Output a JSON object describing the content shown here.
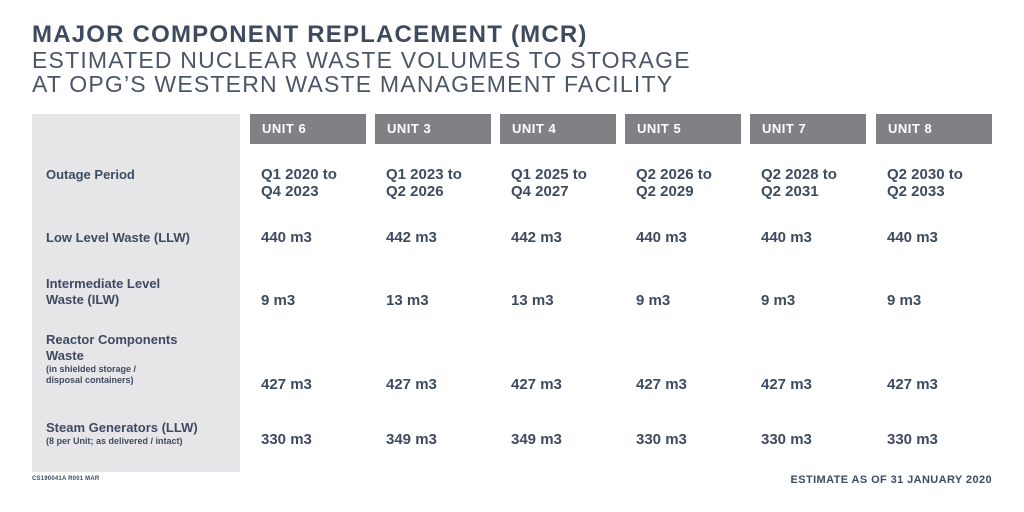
{
  "title": {
    "line1": "MAJOR COMPONENT REPLACEMENT (MCR)",
    "line2": "ESTIMATED NUCLEAR WASTE VOLUMES TO STORAGE",
    "line3": "AT OPG’S WESTERN WASTE MANAGEMENT FACILITY"
  },
  "units": [
    "UNIT 6",
    "UNIT 3",
    "UNIT 4",
    "UNIT 5",
    "UNIT 7",
    "UNIT 8"
  ],
  "rows": [
    {
      "label": "Outage Period",
      "note": "",
      "values": [
        [
          "Q1 2020 to",
          "Q4 2023"
        ],
        [
          "Q1 2023 to",
          "Q2 2026"
        ],
        [
          "Q1 2025 to",
          "Q4 2027"
        ],
        [
          "Q2 2026 to",
          "Q2 2029"
        ],
        [
          "Q2 2028 to",
          "Q2 2031"
        ],
        [
          "Q2 2030 to",
          "Q2 2033"
        ]
      ]
    },
    {
      "label": "Low Level Waste (LLW)",
      "note": "",
      "values": [
        "440 m3",
        "442 m3",
        "442 m3",
        "440 m3",
        "440 m3",
        "440 m3"
      ]
    },
    {
      "label": [
        "Intermediate Level",
        "Waste (ILW)"
      ],
      "note": "",
      "values": [
        "9 m3",
        "13 m3",
        "13 m3",
        "9 m3",
        "9 m3",
        "9 m3"
      ]
    },
    {
      "label": [
        "Reactor Components",
        "Waste"
      ],
      "note": [
        "(in shielded storage /",
        "disposal containers)"
      ],
      "values": [
        "427 m3",
        "427 m3",
        "427 m3",
        "427 m3",
        "427 m3",
        "427 m3"
      ]
    },
    {
      "label": "Steam Generators (LLW)",
      "note": "(8 per Unit; as delivered / intact)",
      "values": [
        "330 m3",
        "349 m3",
        "349 m3",
        "330 m3",
        "330 m3",
        "330 m3"
      ]
    }
  ],
  "footer": {
    "code": "CS190041A R001 MAR",
    "estimate": "ESTIMATE AS OF 31 JANUARY 2020"
  }
}
